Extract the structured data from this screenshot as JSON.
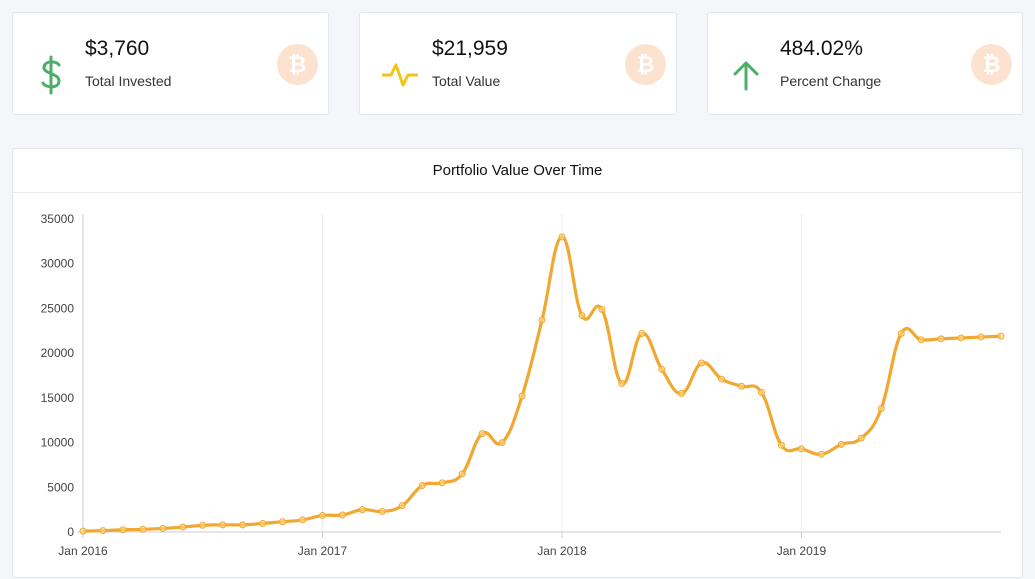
{
  "stats": [
    {
      "value": "$3,760",
      "label": "Total Invested",
      "icon": "dollar-icon",
      "color": "#4caf68"
    },
    {
      "value": "$21,959",
      "label": "Total Value",
      "icon": "pulse-icon",
      "color": "#f0c419"
    },
    {
      "value": "484.02%",
      "label": "Percent Change",
      "icon": "arrow-up-icon",
      "color": "#4caf68"
    }
  ],
  "coin_icon": {
    "name": "bitcoin-icon",
    "glyph": "₿",
    "color": "#fde3cf"
  },
  "chart_data": {
    "type": "line",
    "title": "Portfolio Value Over Time",
    "xlabel": "",
    "ylabel": "",
    "ylim": [
      0,
      35000
    ],
    "y_ticks": [
      0,
      5000,
      10000,
      15000,
      20000,
      25000,
      30000,
      35000
    ],
    "x_tick_labels": [
      {
        "label": "Jan 2016",
        "index": 0
      },
      {
        "label": "Jan 2017",
        "index": 12
      },
      {
        "label": "Jan 2018",
        "index": 24
      },
      {
        "label": "Jan 2019",
        "index": 36
      }
    ],
    "grid": "vertical at year ticks",
    "line_color": "#f0a830",
    "series": [
      {
        "values": [
          100,
          150,
          250,
          300,
          400,
          550,
          750,
          800,
          800,
          950,
          1150,
          1350,
          1850,
          1900,
          2500,
          2300,
          2950,
          5200,
          5500,
          6500,
          11000,
          10000,
          15200,
          23700,
          33000,
          24200,
          24900,
          16600,
          22200,
          18200,
          15500,
          18900,
          17100,
          16300,
          15600,
          9700,
          9300,
          8700,
          9800,
          10500,
          13800,
          22200,
          21500,
          21600,
          21700,
          21800,
          21900
        ]
      }
    ]
  }
}
